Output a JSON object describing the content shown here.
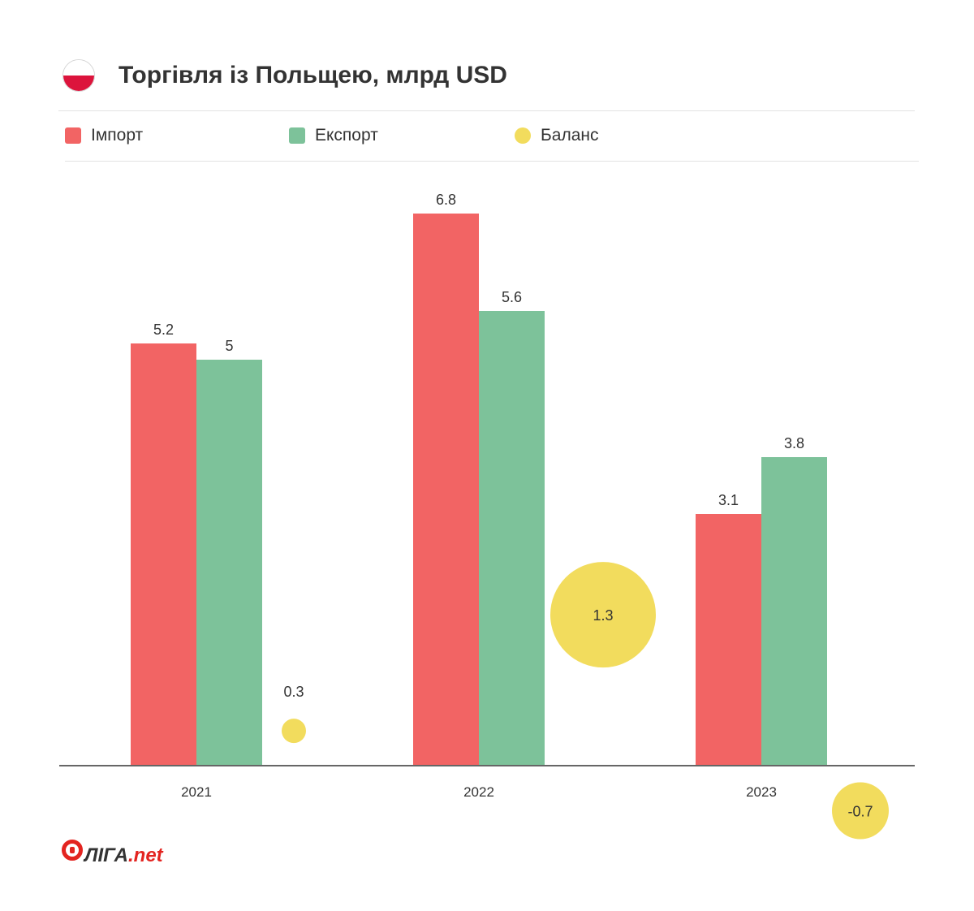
{
  "header": {
    "title": "Торгівля із Польщею, млрд USD",
    "flag_icon": "poland-flag-icon"
  },
  "legend": [
    {
      "label": "Імпорт",
      "color": "#f26464"
    },
    {
      "label": "Експорт",
      "color": "#7dc29a"
    },
    {
      "label": "Баланс",
      "color": "#f2dc5d"
    }
  ],
  "chart_data": {
    "type": "bar",
    "title": "Торгівля із Польщею, млрд USD",
    "categories": [
      "2021",
      "2022",
      "2023"
    ],
    "series": [
      {
        "name": "Імпорт",
        "values": [
          5.2,
          6.8,
          3.1
        ],
        "labels": [
          "5.2",
          "6.8",
          "3.1"
        ],
        "color": "#f26464"
      },
      {
        "name": "Експорт",
        "values": [
          5,
          5.6,
          3.8
        ],
        "labels": [
          "5",
          "5.6",
          "3.8"
        ],
        "color": "#7dc29a"
      },
      {
        "name": "Баланс",
        "values": [
          0.3,
          1.3,
          -0.7
        ],
        "labels": [
          "0.3",
          "1.3",
          "-0.7"
        ],
        "color": "#f2dc5d",
        "shape": "bubble"
      }
    ],
    "legend_position": "top-left",
    "grid": false
  },
  "logo": {
    "name": "ЛІГА",
    "suffix": ".net",
    "icon": "liga-logo-icon"
  }
}
